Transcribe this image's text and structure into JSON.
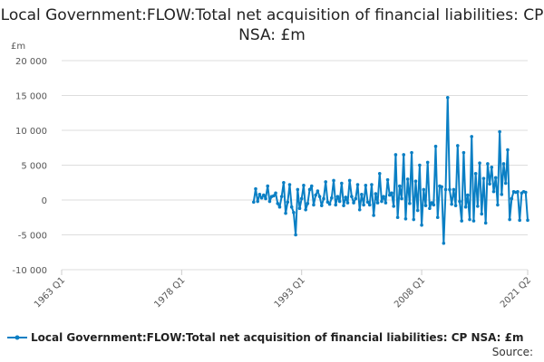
{
  "chart_data": {
    "type": "line",
    "title": "Local Government:FLOW:Total net acquisition of financial liabilities: CP NSA: £m",
    "ylabel": "£m",
    "ylim": [
      -10000,
      20000
    ],
    "yticks": [
      20000,
      15000,
      10000,
      5000,
      0,
      -5000,
      -10000
    ],
    "ytick_labels": [
      "20 000",
      "15 000",
      "10 000",
      "5 000",
      "0",
      "-5 000",
      "-10 000"
    ],
    "xrange_quarters": [
      "1963 Q1",
      "2021 Q2"
    ],
    "xtick_labels": [
      "1963 Q1",
      "1978 Q1",
      "1993 Q1",
      "2008 Q1",
      "2021 Q2"
    ],
    "grid": true,
    "legend_position": "bottom",
    "series": [
      {
        "name": "Local Government:FLOW:Total net acquisition of financial liabilities: CP NSA: £m",
        "color": "#0a7fc4",
        "start": "1987 Q1",
        "values": [
          -300,
          1600,
          -200,
          800,
          300,
          700,
          200,
          2000,
          -200,
          500,
          600,
          1000,
          -500,
          -1000,
          500,
          2500,
          -1900,
          -300,
          2200,
          -1000,
          -1800,
          -5000,
          1500,
          -1200,
          200,
          2100,
          -1400,
          -500,
          1500,
          2000,
          -700,
          700,
          1300,
          500,
          -800,
          200,
          2600,
          -300,
          -600,
          300,
          2800,
          -700,
          500,
          -200,
          2400,
          -800,
          400,
          -400,
          2800,
          500,
          -400,
          200,
          2200,
          -1400,
          800,
          -700,
          2100,
          -300,
          -700,
          2200,
          -2200,
          900,
          -400,
          3800,
          -200,
          500,
          -400,
          2900,
          700,
          1000,
          -900,
          6500,
          -2500,
          2000,
          200,
          6500,
          -2700,
          3000,
          -500,
          6800,
          -2800,
          2700,
          -1500,
          5000,
          -3600,
          1500,
          -800,
          5400,
          -1200,
          -400,
          -700,
          7700,
          -2500,
          2000,
          1900,
          -6200,
          1500,
          14700,
          1500,
          -600,
          1500,
          -800,
          7800,
          -200,
          -3000,
          6800,
          -1000,
          700,
          -2800,
          9100,
          -3000,
          3800,
          -900,
          5300,
          -2000,
          3100,
          -3300,
          5200,
          2300,
          4700,
          1200,
          3200,
          -700,
          9800,
          800,
          5200,
          2400,
          7200,
          -2800,
          200,
          1200,
          1100,
          1200,
          -2900,
          1000,
          1200,
          1100,
          -2900
        ]
      }
    ]
  },
  "source_label": "Source:"
}
